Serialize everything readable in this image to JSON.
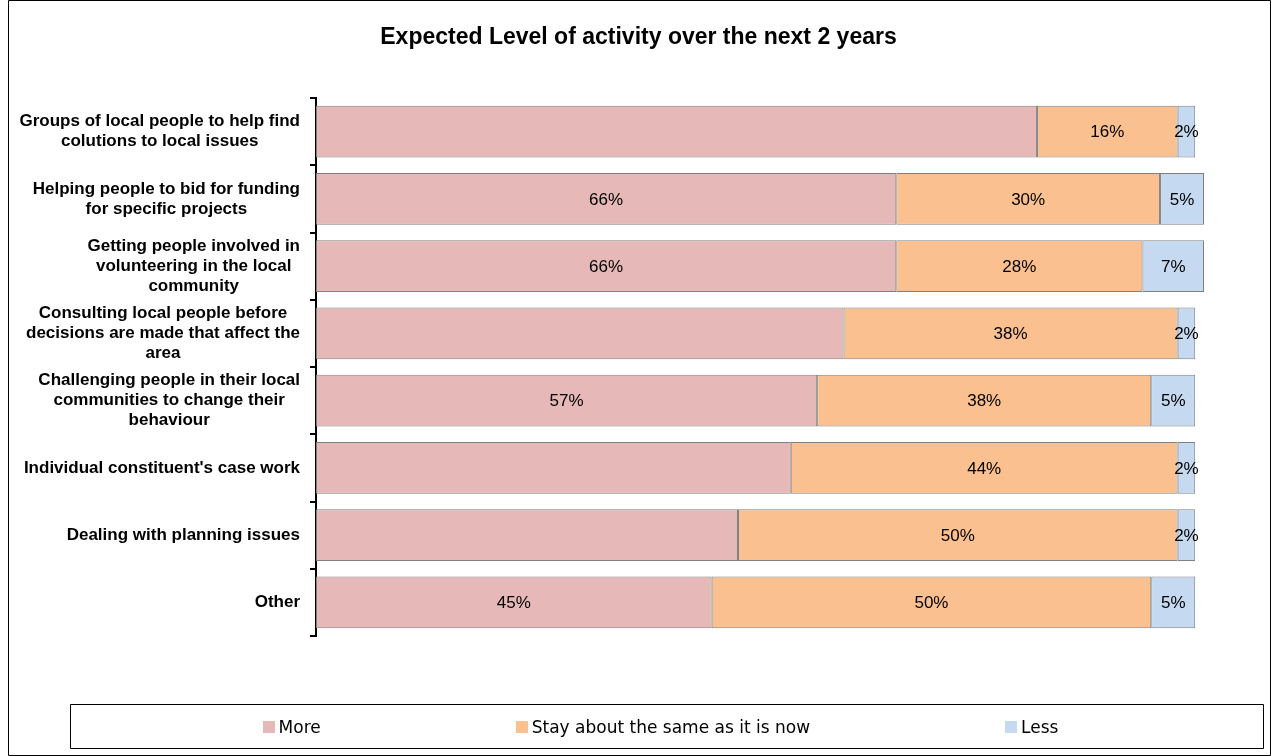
{
  "chart_data": {
    "type": "bar",
    "orientation": "horizontal",
    "stacked": true,
    "title": "Expected Level of activity over the next 2 years",
    "categories": [
      "Groups of local people to help find colutions to local issues",
      "Helping people to bid for funding for specific projects",
      "Getting people involved in volunteering in the local community",
      "Consulting local people before decisions are made that affect the area",
      "Challenging people in their local communities to change their behaviour",
      "Individual constituent's case work",
      "Dealing with planning issues",
      "Other"
    ],
    "series": [
      {
        "name": "More",
        "color": "#e6b8b7",
        "values": [
          82,
          66,
          66,
          60,
          57,
          54,
          48,
          45
        ],
        "value_labels": [
          null,
          "66%",
          "66%",
          null,
          "57%",
          null,
          null,
          "45%"
        ]
      },
      {
        "name": "Stay about the same as it is now",
        "color": "#fac090",
        "values": [
          16,
          30,
          28,
          38,
          38,
          44,
          50,
          50
        ],
        "value_labels": [
          "16%",
          "30%",
          "28%",
          "38%",
          "38%",
          "44%",
          "50%",
          "50%"
        ]
      },
      {
        "name": "Less",
        "color": "#c5d9f1",
        "values": [
          2,
          5,
          7,
          2,
          5,
          2,
          2,
          5
        ],
        "value_labels": [
          "2%",
          "5%",
          "7%",
          "2%",
          "5%",
          "2%",
          "2%",
          "5%"
        ]
      }
    ],
    "legend": "bottom"
  }
}
